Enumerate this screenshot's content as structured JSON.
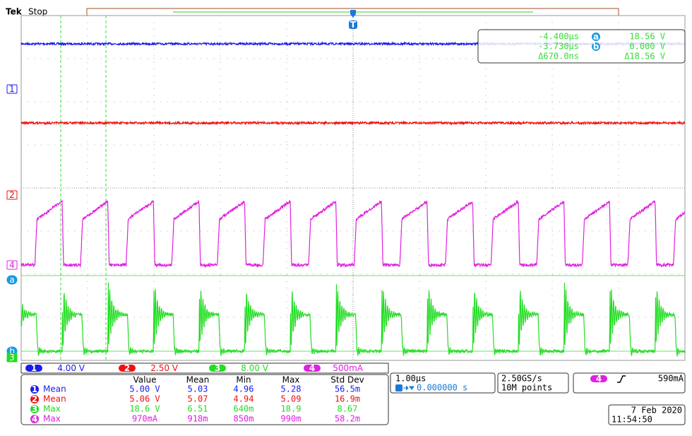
{
  "header": {
    "brand": "Tek",
    "status": "Stop"
  },
  "trigger_marker": "T",
  "cursor_readout": {
    "rows": [
      [
        "-4.400µs",
        "a",
        "18.56 V"
      ],
      [
        "-3.730µs",
        "b",
        "0.000 V"
      ],
      [
        "Δ670.0ns",
        "Δ18.56 V"
      ]
    ]
  },
  "markers": [
    "1",
    "2",
    "4",
    "a",
    "b",
    "3"
  ],
  "channels": [
    {
      "label": "1",
      "scale": "4.00 V"
    },
    {
      "label": "2",
      "scale": "2.50 V"
    },
    {
      "label": "3",
      "scale": "8.00 V"
    },
    {
      "label": "4",
      "scale": "500mA"
    }
  ],
  "measurements": {
    "headers": [
      "Value",
      "Mean",
      "Min",
      "Max",
      "Std Dev"
    ],
    "rows": [
      {
        "channel": "1",
        "name": "Mean",
        "cells": [
          "5.00 V",
          "5.03",
          "4.96",
          "5.28",
          "56.5m"
        ]
      },
      {
        "channel": "2",
        "name": "Mean",
        "cells": [
          "5.06 V",
          "5.07",
          "4.94",
          "5.09",
          "16.9m"
        ]
      },
      {
        "channel": "3",
        "name": "Max",
        "cells": [
          "18.6 V",
          "6.51",
          "640m",
          "18.9",
          "8.67"
        ]
      },
      {
        "channel": "4",
        "name": "Max",
        "cells": [
          "970mA",
          "918m",
          "850m",
          "990m",
          "58.2m"
        ]
      }
    ]
  },
  "timebase": {
    "scale": "1.00µs",
    "position": "0.000000 s"
  },
  "acquisition": {
    "rate": "2.50GS/s",
    "length": "10M points"
  },
  "trigger": {
    "channel": "4",
    "level": "590mA"
  },
  "date": "7 Feb  2020",
  "time": "11:54:50"
}
